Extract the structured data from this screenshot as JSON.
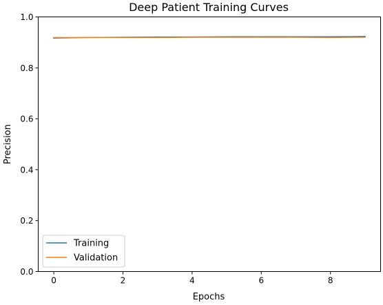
{
  "chart_data": {
    "type": "line",
    "title": "Deep Patient Training Curves",
    "xlabel": "Epochs",
    "ylabel": "Precision",
    "xlim": [
      -0.45,
      9.45
    ],
    "ylim": [
      0.0,
      1.0
    ],
    "xticks": [
      0,
      2,
      4,
      6,
      8
    ],
    "xtick_labels": [
      "0",
      "2",
      "4",
      "6",
      "8"
    ],
    "yticks": [
      0.0,
      0.2,
      0.4,
      0.6,
      0.8,
      1.0
    ],
    "ytick_labels": [
      "0.0",
      "0.2",
      "0.4",
      "0.6",
      "0.8",
      "1.0"
    ],
    "grid": false,
    "legend_position": "lower-left",
    "x": [
      0,
      1,
      2,
      3,
      4,
      5,
      6,
      7,
      8,
      9
    ],
    "series": [
      {
        "name": "Training",
        "color": "#1f77b4",
        "values": [
          0.917,
          0.919,
          0.92,
          0.921,
          0.921,
          0.922,
          0.922,
          0.922,
          0.922,
          0.923
        ]
      },
      {
        "name": "Validation",
        "color": "#ff7f0e",
        "values": [
          0.919,
          0.919,
          0.919,
          0.919,
          0.92,
          0.92,
          0.92,
          0.92,
          0.919,
          0.92
        ]
      }
    ]
  }
}
